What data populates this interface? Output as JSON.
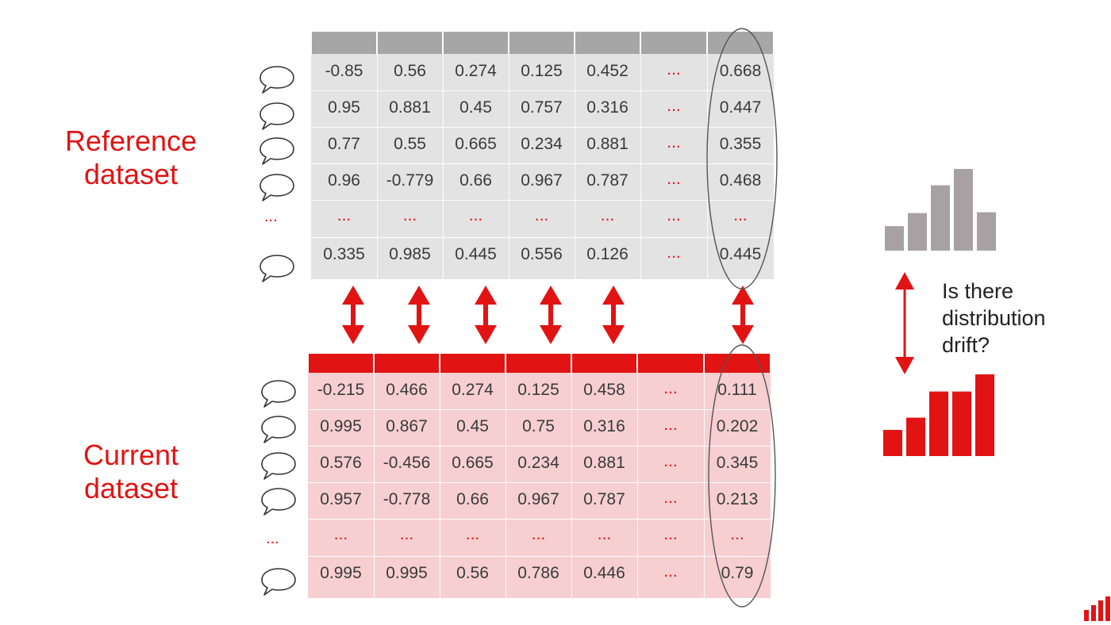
{
  "reference_label": [
    "Reference",
    "dataset"
  ],
  "current_label": [
    "Current",
    "dataset"
  ],
  "reference_table": {
    "rows": [
      [
        "-0.85",
        "0.56",
        "0.274",
        "0.125",
        "0.452",
        "...",
        "0.668"
      ],
      [
        "0.95",
        "0.881",
        "0.45",
        "0.757",
        "0.316",
        "...",
        "0.447"
      ],
      [
        "0.77",
        "0.55",
        "0.665",
        "0.234",
        "0.881",
        "...",
        "0.355"
      ],
      [
        "0.96",
        "-0.779",
        "0.66",
        "0.967",
        "0.787",
        "...",
        "0.468"
      ],
      [
        "...",
        "...",
        "...",
        "...",
        "...",
        "...",
        "..."
      ],
      [
        "0.335",
        "0.985",
        "0.445",
        "0.556",
        "0.126",
        "...",
        "0.445"
      ]
    ]
  },
  "current_table": {
    "rows": [
      [
        "-0.215",
        "0.466",
        "0.274",
        "0.125",
        "0.458",
        "...",
        "0.111"
      ],
      [
        "0.995",
        "0.867",
        "0.45",
        "0.75",
        "0.316",
        "...",
        "0.202"
      ],
      [
        "0.576",
        "-0.456",
        "0.665",
        "0.234",
        "0.881",
        "...",
        "0.345"
      ],
      [
        "0.957",
        "-0.778",
        "0.66",
        "0.967",
        "0.787",
        "...",
        "0.213"
      ],
      [
        "...",
        "...",
        "...",
        "...",
        "...",
        "...",
        "..."
      ],
      [
        "0.995",
        "0.995",
        "0.56",
        "0.786",
        "0.446",
        "...",
        "0.79"
      ]
    ]
  },
  "row_side_dots": "...",
  "drift_question": [
    "Is there",
    "distribution",
    "drift?"
  ],
  "reference_histogram": [
    0.3,
    0.46,
    0.8,
    1.0,
    0.47
  ],
  "current_histogram": [
    0.32,
    0.47,
    0.79,
    0.79,
    1.0
  ],
  "colors": {
    "accent_red": "#e21313",
    "reference_header": "#a6a6a6",
    "reference_body": "#e3e3e3",
    "current_body": "#f7cfd1",
    "reference_bars": "#a8a1a3"
  },
  "icons": [
    "speech-bubble-icon",
    "double-arrow-icon",
    "column-ellipse",
    "logo-bars-icon"
  ]
}
